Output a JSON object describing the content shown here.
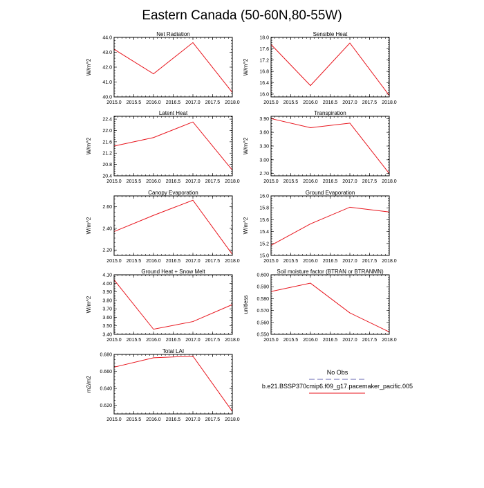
{
  "figure": {
    "title": "Eastern Canada (50-60N,80-55W)",
    "series_color": "#e8141c",
    "obs_color": "#9999cc"
  },
  "legend": {
    "obs_label": "No Obs",
    "model_label": "b.e21.BSSP370cmip6.f09_g17.pacemaker_pacific.005"
  },
  "chart_data": [
    {
      "type": "line",
      "title": "Net Radiation",
      "xlabel": "",
      "ylabel": "W/m^2",
      "x": [
        2015,
        2016,
        2017,
        2018
      ],
      "series": [
        {
          "name": "b.e21.BSSP370cmip6.f09_g17.pacemaker_pacific.005",
          "values": [
            43.2,
            41.55,
            43.65,
            40.3
          ]
        }
      ],
      "xlim": [
        2015,
        2018
      ],
      "ylim": [
        40.0,
        44.0
      ],
      "xticks": [
        "2015.0",
        "2015.5",
        "2016.0",
        "2016.5",
        "2017.0",
        "2017.5",
        "2018.0"
      ],
      "yticks": [
        "40.0",
        "41.0",
        "42.0",
        "43.0",
        "44.0"
      ]
    },
    {
      "type": "line",
      "title": "Sensible Heat",
      "xlabel": "",
      "ylabel": "W/m^2",
      "x": [
        2015,
        2016,
        2017,
        2018
      ],
      "series": [
        {
          "name": "b.e21.BSSP370cmip6.f09_g17.pacemaker_pacific.005",
          "values": [
            17.75,
            16.3,
            17.8,
            15.95
          ]
        }
      ],
      "xlim": [
        2015,
        2018
      ],
      "ylim": [
        15.9,
        18.0
      ],
      "xticks": [
        "2015.0",
        "2015.5",
        "2016.0",
        "2016.5",
        "2017.0",
        "2017.5",
        "2018.0"
      ],
      "yticks": [
        "16.0",
        "16.4",
        "16.8",
        "17.2",
        "17.6",
        "18.0"
      ]
    },
    {
      "type": "line",
      "title": "Latent Heat",
      "xlabel": "",
      "ylabel": "W/m^2",
      "x": [
        2015,
        2016,
        2017,
        2018
      ],
      "series": [
        {
          "name": "b.e21.BSSP370cmip6.f09_g17.pacemaker_pacific.005",
          "values": [
            21.45,
            21.75,
            22.3,
            20.6
          ]
        }
      ],
      "xlim": [
        2015,
        2018
      ],
      "ylim": [
        20.4,
        22.5
      ],
      "xticks": [
        "2015.0",
        "2015.5",
        "2016.0",
        "2016.5",
        "2017.0",
        "2017.5",
        "2018.0"
      ],
      "yticks": [
        "20.4",
        "20.8",
        "21.2",
        "21.6",
        "22.0",
        "22.4"
      ]
    },
    {
      "type": "line",
      "title": "Transpiration",
      "xlabel": "",
      "ylabel": "W/m^2",
      "x": [
        2015,
        2016,
        2017,
        2018
      ],
      "series": [
        {
          "name": "b.e21.BSSP370cmip6.f09_g17.pacemaker_pacific.005",
          "values": [
            3.9,
            3.7,
            3.8,
            2.7
          ]
        }
      ],
      "xlim": [
        2015,
        2018
      ],
      "ylim": [
        2.65,
        3.95
      ],
      "xticks": [
        "2015.0",
        "2015.5",
        "2016.0",
        "2016.5",
        "2017.0",
        "2017.5",
        "2018.0"
      ],
      "yticks": [
        "2.70",
        "3.00",
        "3.30",
        "3.60",
        "3.90"
      ]
    },
    {
      "type": "line",
      "title": "Canopy Evaporation",
      "xlabel": "",
      "ylabel": "W/m^2",
      "x": [
        2015,
        2016,
        2017,
        2018
      ],
      "series": [
        {
          "name": "b.e21.BSSP370cmip6.f09_g17.pacemaker_pacific.005",
          "values": [
            2.37,
            2.52,
            2.66,
            2.16
          ]
        }
      ],
      "xlim": [
        2015,
        2018
      ],
      "ylim": [
        2.15,
        2.7
      ],
      "xticks": [
        "2015.0",
        "2015.5",
        "2016.0",
        "2016.5",
        "2017.0",
        "2017.5",
        "2018.0"
      ],
      "yticks": [
        "2.20",
        "2.40",
        "2.60"
      ]
    },
    {
      "type": "line",
      "title": "Ground Evaporation",
      "xlabel": "",
      "ylabel": "W/m^2",
      "x": [
        2015,
        2016,
        2017,
        2018
      ],
      "series": [
        {
          "name": "b.e21.BSSP370cmip6.f09_g17.pacemaker_pacific.005",
          "values": [
            15.17,
            15.53,
            15.81,
            15.73
          ]
        }
      ],
      "xlim": [
        2015,
        2018
      ],
      "ylim": [
        15.0,
        16.0
      ],
      "xticks": [
        "2015.0",
        "2015.5",
        "2016.0",
        "2016.5",
        "2017.0",
        "2017.5",
        "2018.0"
      ],
      "yticks": [
        "15.0",
        "15.2",
        "15.4",
        "15.6",
        "15.8",
        "16.0"
      ]
    },
    {
      "type": "line",
      "title": "Ground Heat + Snow Melt",
      "xlabel": "",
      "ylabel": "W/m^2",
      "x": [
        2015,
        2016,
        2017,
        2018
      ],
      "series": [
        {
          "name": "b.e21.BSSP370cmip6.f09_g17.pacemaker_pacific.005",
          "values": [
            4.04,
            3.46,
            3.55,
            3.75
          ]
        }
      ],
      "xlim": [
        2015,
        2018
      ],
      "ylim": [
        3.4,
        4.1
      ],
      "xticks": [
        "2015.0",
        "2015.5",
        "2016.0",
        "2016.5",
        "2017.0",
        "2017.5",
        "2018.0"
      ],
      "yticks": [
        "3.40",
        "3.50",
        "3.60",
        "3.70",
        "3.80",
        "3.90",
        "4.00",
        "4.10"
      ]
    },
    {
      "type": "line",
      "title": "Soil moisture factor (BTRAN or BTRANMN)",
      "xlabel": "",
      "ylabel": "unitless",
      "x": [
        2015,
        2016,
        2017,
        2018
      ],
      "series": [
        {
          "name": "b.e21.BSSP370cmip6.f09_g17.pacemaker_pacific.005",
          "values": [
            0.586,
            0.593,
            0.568,
            0.552
          ]
        }
      ],
      "xlim": [
        2015,
        2018
      ],
      "ylim": [
        0.55,
        0.6
      ],
      "xticks": [
        "2015.0",
        "2015.5",
        "2016.0",
        "2016.5",
        "2017.0",
        "2017.5",
        "2018.0"
      ],
      "yticks": [
        "0.550",
        "0.560",
        "0.570",
        "0.580",
        "0.590",
        "0.600"
      ]
    },
    {
      "type": "line",
      "title": "Total LAI",
      "xlabel": "",
      "ylabel": "m2/m2",
      "x": [
        2015,
        2016,
        2017,
        2018
      ],
      "series": [
        {
          "name": "b.e21.BSSP370cmip6.f09_g17.pacemaker_pacific.005",
          "values": [
            0.665,
            0.676,
            0.678,
            0.613
          ]
        }
      ],
      "xlim": [
        2015,
        2018
      ],
      "ylim": [
        0.61,
        0.68
      ],
      "xticks": [
        "2015.0",
        "2015.5",
        "2016.0",
        "2016.5",
        "2017.0",
        "2017.5",
        "2018.0"
      ],
      "yticks": [
        "0.620",
        "0.640",
        "0.660",
        "0.680"
      ]
    }
  ]
}
